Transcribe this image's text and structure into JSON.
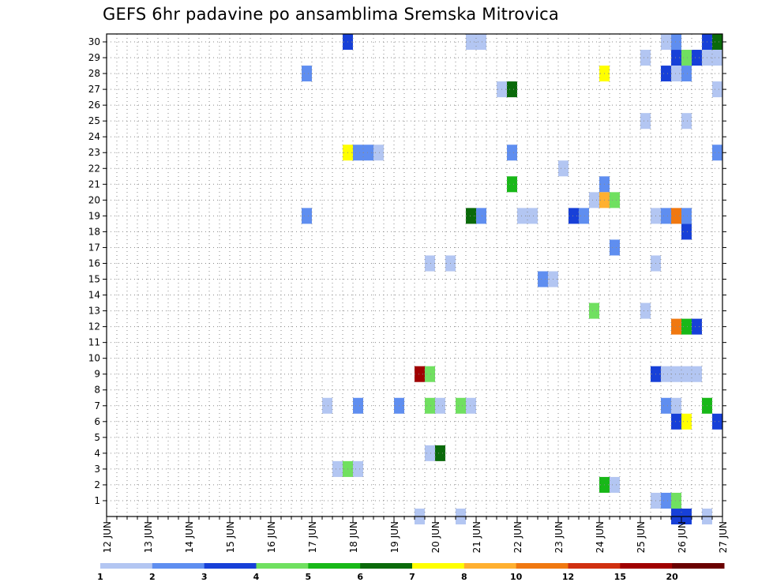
{
  "chart_data": {
    "type": "heatmap",
    "title": "GEFS 6hr padavine po ansamblima Sremska Mitrovica",
    "y_ticks": [
      "1",
      "2",
      "3",
      "4",
      "5",
      "6",
      "7",
      "8",
      "9",
      "10",
      "11",
      "12",
      "13",
      "14",
      "15",
      "16",
      "17",
      "18",
      "19",
      "20",
      "21",
      "22",
      "23",
      "24",
      "25",
      "26",
      "27",
      "28",
      "29",
      "30"
    ],
    "x_ticks": [
      "12 JUN",
      "13 JUN",
      "14 JUN",
      "15 JUN",
      "16 JUN",
      "17 JUN",
      "18 JUN",
      "19 JUN",
      "20 JUN",
      "21 JUN",
      "22 JUN",
      "23 JUN",
      "24 JUN",
      "25 JUN",
      "26 JUN",
      "27 JUN"
    ],
    "x_range_days": [
      0,
      15
    ],
    "y_range": [
      0,
      30
    ],
    "grid": true,
    "levels": [
      "1",
      "2",
      "3",
      "4",
      "5",
      "6",
      "7",
      "8",
      "10",
      "12",
      "15",
      "20"
    ],
    "level_colors": [
      "#b3c6f2",
      "#5f8ef0",
      "#1740d8",
      "#70e060",
      "#18b818",
      "#0a6a0a",
      "#ffff00",
      "#ffb030",
      "#f07810",
      "#d03010",
      "#a00000",
      "#6a0000"
    ],
    "cells": [
      {
        "m": 30,
        "t": 23,
        "c": 2
      },
      {
        "m": 30,
        "t": 35,
        "c": 0
      },
      {
        "m": 30,
        "t": 36,
        "c": 0
      },
      {
        "m": 30,
        "t": 54,
        "c": 0
      },
      {
        "m": 30,
        "t": 55,
        "c": 1
      },
      {
        "m": 30,
        "t": 58,
        "c": 2
      },
      {
        "m": 30,
        "t": 59,
        "c": 5
      },
      {
        "m": 29,
        "t": 52,
        "c": 0
      },
      {
        "m": 29,
        "t": 55,
        "c": 2
      },
      {
        "m": 29,
        "t": 56,
        "c": 3
      },
      {
        "m": 29,
        "t": 57,
        "c": 2
      },
      {
        "m": 29,
        "t": 58,
        "c": 0
      },
      {
        "m": 29,
        "t": 59,
        "c": 0
      },
      {
        "m": 28,
        "t": 19,
        "c": 1
      },
      {
        "m": 28,
        "t": 48,
        "c": 6
      },
      {
        "m": 28,
        "t": 54,
        "c": 2
      },
      {
        "m": 28,
        "t": 55,
        "c": 0
      },
      {
        "m": 28,
        "t": 56,
        "c": 1
      },
      {
        "m": 27,
        "t": 38,
        "c": 0
      },
      {
        "m": 27,
        "t": 39,
        "c": 5
      },
      {
        "m": 27,
        "t": 59,
        "c": 0
      },
      {
        "m": 25,
        "t": 52,
        "c": 0
      },
      {
        "m": 25,
        "t": 56,
        "c": 0
      },
      {
        "m": 24,
        "t": 60,
        "c": 1
      },
      {
        "m": 23,
        "t": 23,
        "c": 6
      },
      {
        "m": 23,
        "t": 24,
        "c": 1
      },
      {
        "m": 23,
        "t": 25,
        "c": 1
      },
      {
        "m": 23,
        "t": 26,
        "c": 0
      },
      {
        "m": 23,
        "t": 39,
        "c": 1
      },
      {
        "m": 23,
        "t": 59,
        "c": 1
      },
      {
        "m": 23,
        "t": 60,
        "c": 5
      },
      {
        "m": 22,
        "t": 44,
        "c": 0
      },
      {
        "m": 21,
        "t": 39,
        "c": 4
      },
      {
        "m": 21,
        "t": 48,
        "c": 1
      },
      {
        "m": 20,
        "t": 47,
        "c": 0
      },
      {
        "m": 20,
        "t": 48,
        "c": 7
      },
      {
        "m": 20,
        "t": 49,
        "c": 3
      },
      {
        "m": 19,
        "t": 19,
        "c": 1
      },
      {
        "m": 19,
        "t": 35,
        "c": 5
      },
      {
        "m": 19,
        "t": 36,
        "c": 1
      },
      {
        "m": 19,
        "t": 40,
        "c": 0
      },
      {
        "m": 19,
        "t": 41,
        "c": 0
      },
      {
        "m": 19,
        "t": 45,
        "c": 2
      },
      {
        "m": 19,
        "t": 46,
        "c": 1
      },
      {
        "m": 19,
        "t": 53,
        "c": 0
      },
      {
        "m": 19,
        "t": 54,
        "c": 1
      },
      {
        "m": 19,
        "t": 55,
        "c": 8
      },
      {
        "m": 19,
        "t": 56,
        "c": 1
      },
      {
        "m": 18,
        "t": 56,
        "c": 2
      },
      {
        "m": 17,
        "t": 49,
        "c": 1
      },
      {
        "m": 16,
        "t": 31,
        "c": 0
      },
      {
        "m": 16,
        "t": 33,
        "c": 0
      },
      {
        "m": 16,
        "t": 53,
        "c": 0
      },
      {
        "m": 15,
        "t": 42,
        "c": 1
      },
      {
        "m": 15,
        "t": 43,
        "c": 0
      },
      {
        "m": 13,
        "t": 47,
        "c": 3
      },
      {
        "m": 13,
        "t": 52,
        "c": 0
      },
      {
        "m": 12,
        "t": 55,
        "c": 8
      },
      {
        "m": 12,
        "t": 56,
        "c": 4
      },
      {
        "m": 12,
        "t": 57,
        "c": 2
      },
      {
        "m": 12,
        "t": 60,
        "c": 4
      },
      {
        "m": 9,
        "t": 30,
        "c": 10
      },
      {
        "m": 9,
        "t": 31,
        "c": 3
      },
      {
        "m": 9,
        "t": 53,
        "c": 2
      },
      {
        "m": 9,
        "t": 54,
        "c": 0
      },
      {
        "m": 9,
        "t": 55,
        "c": 0
      },
      {
        "m": 9,
        "t": 56,
        "c": 0
      },
      {
        "m": 9,
        "t": 57,
        "c": 0
      },
      {
        "m": 7,
        "t": 21,
        "c": 0
      },
      {
        "m": 7,
        "t": 24,
        "c": 1
      },
      {
        "m": 7,
        "t": 28,
        "c": 1
      },
      {
        "m": 7,
        "t": 31,
        "c": 3
      },
      {
        "m": 7,
        "t": 32,
        "c": 0
      },
      {
        "m": 7,
        "t": 34,
        "c": 3
      },
      {
        "m": 7,
        "t": 35,
        "c": 0
      },
      {
        "m": 7,
        "t": 54,
        "c": 1
      },
      {
        "m": 7,
        "t": 55,
        "c": 0
      },
      {
        "m": 7,
        "t": 58,
        "c": 4
      },
      {
        "m": 6,
        "t": 55,
        "c": 2
      },
      {
        "m": 6,
        "t": 56,
        "c": 6
      },
      {
        "m": 6,
        "t": 59,
        "c": 2
      },
      {
        "m": 6,
        "t": 60,
        "c": 0
      },
      {
        "m": 4,
        "t": 31,
        "c": 0
      },
      {
        "m": 4,
        "t": 32,
        "c": 5
      },
      {
        "m": 3,
        "t": 22,
        "c": 0
      },
      {
        "m": 3,
        "t": 23,
        "c": 3
      },
      {
        "m": 3,
        "t": 24,
        "c": 0
      },
      {
        "m": 2,
        "t": 48,
        "c": 4
      },
      {
        "m": 2,
        "t": 49,
        "c": 0
      },
      {
        "m": 1,
        "t": 53,
        "c": 0
      },
      {
        "m": 1,
        "t": 54,
        "c": 1
      },
      {
        "m": 1,
        "t": 55,
        "c": 3
      },
      {
        "m": 0,
        "t": 30,
        "c": 0
      },
      {
        "m": 0,
        "t": 34,
        "c": 0
      },
      {
        "m": 0,
        "t": 55,
        "c": 2
      },
      {
        "m": 0,
        "t": 56,
        "c": 2
      },
      {
        "m": 0,
        "t": 58,
        "c": 0
      }
    ]
  }
}
